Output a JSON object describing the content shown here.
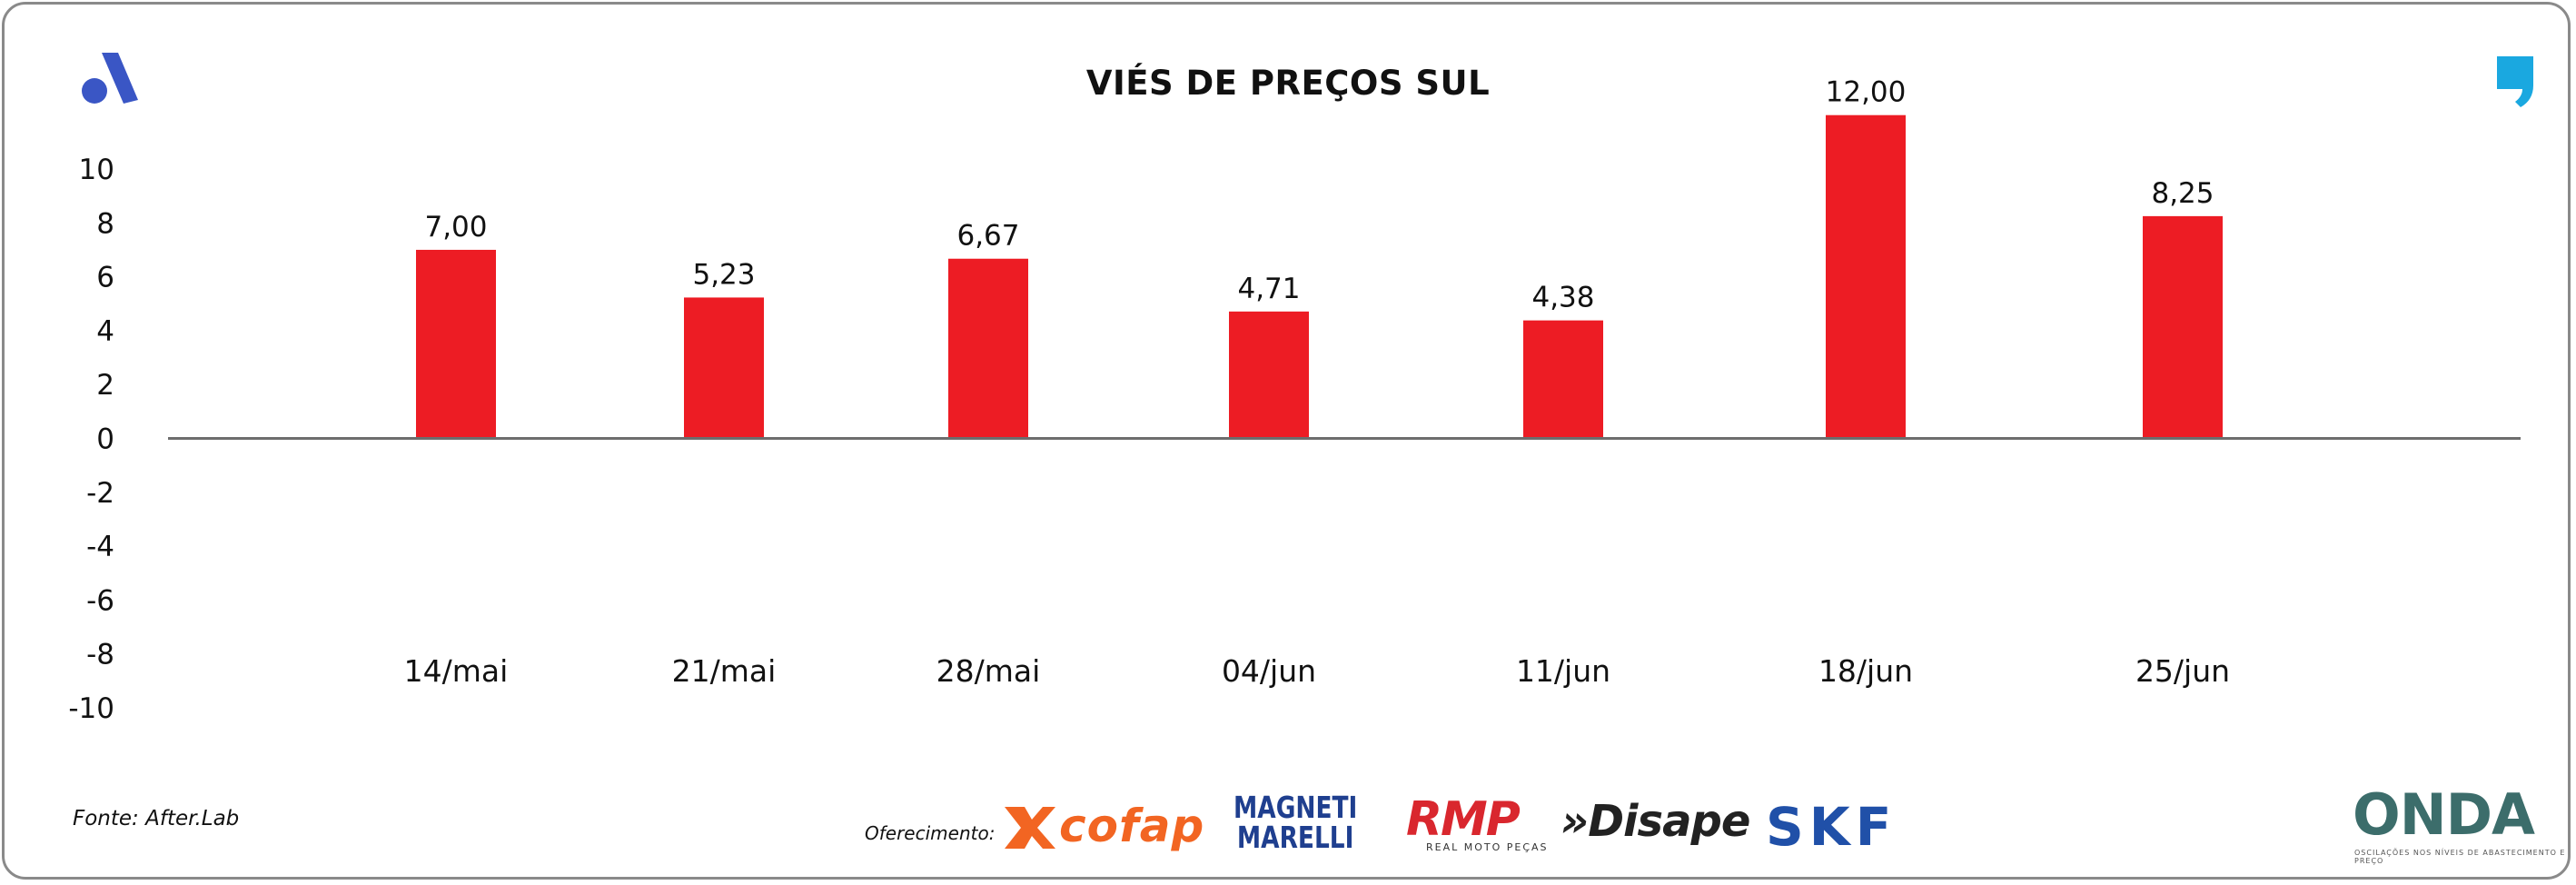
{
  "title": "VIÉS DE PREÇOS SUL",
  "source": "Fonte: After.Lab",
  "sponsor_label": "Oferecimento:",
  "sponsors": {
    "cofap": "cofap",
    "magneti_line1": "MAGNETI",
    "magneti_line2": "MARELLI",
    "rmp": "RMP",
    "rmp_sub": "REAL MOTO PEÇAS",
    "disape": "»Disape",
    "skf": "SKF",
    "onda": "ONDA",
    "onda_sub": "OSCILAÇÕES NOS NÍVEIS DE ABASTECIMENTO E PREÇO"
  },
  "colors": {
    "bar": "#ed1c24",
    "axis": "#6d6d6d",
    "logo_blue": "#3a56c5",
    "quote_blue": "#1aa8e0"
  },
  "icons": {
    "top_left": "after-lab-a-logo-icon",
    "top_right": "quote-mark-icon"
  },
  "chart_data": {
    "type": "bar",
    "title": "VIÉS DE PREÇOS SUL",
    "categories": [
      "14/mai",
      "21/mai",
      "28/mai",
      "04/jun",
      "11/jun",
      "18/jun",
      "25/jun"
    ],
    "values": [
      7.0,
      5.23,
      6.67,
      4.71,
      4.38,
      12.0,
      8.25
    ],
    "data_labels": [
      "7,00",
      "5,23",
      "6,67",
      "4,71",
      "4,38",
      "12,00",
      "8,25"
    ],
    "yticks": [
      "10",
      "8",
      "6",
      "4",
      "2",
      "0",
      "-2",
      "-4",
      "-6",
      "-8",
      "-10"
    ],
    "ylim": [
      -10,
      10
    ],
    "xlabel": "",
    "ylabel": "",
    "grid": false,
    "legend": "none"
  }
}
